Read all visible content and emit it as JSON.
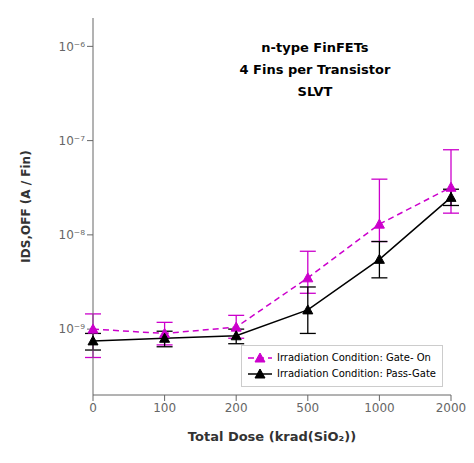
{
  "chart_data": {
    "type": "line",
    "annotations": [
      "n-type FinFETs",
      "4 Fins per Transistor",
      "SLVT"
    ],
    "x_label": "Total Dose (krad(SiO₂))",
    "y_label": "IDS,OFF (A / Fin)",
    "categories": [
      "0",
      "100",
      "200",
      "500",
      "1000",
      "2000"
    ],
    "series": [
      {
        "name": "Irradiation Condition: Gate- On",
        "color": "#CC00CC",
        "line_style": "dashed",
        "marker": "triangle",
        "values": [
          1e-09,
          9e-10,
          1.05e-09,
          3.5e-09,
          1.3e-08,
          3.2e-08
        ],
        "error_low": [
          5e-10,
          2.2e-10,
          2.5e-10,
          1.1e-09,
          4.5e-09,
          1.5e-08
        ],
        "error_high": [
          4.5e-10,
          2.8e-10,
          3.5e-10,
          3.2e-09,
          2.6e-08,
          4.8e-08
        ]
      },
      {
        "name": "Irradiation Condition: Pass-Gate",
        "color": "#000000",
        "line_style": "solid",
        "marker": "triangle",
        "values": [
          7.5e-10,
          8e-10,
          8.5e-10,
          1.6e-09,
          5.5e-09,
          2.5e-08
        ],
        "error_low": [
          1.5e-10,
          1.5e-10,
          1.5e-10,
          7e-10,
          2e-09,
          4.5e-09
        ],
        "error_high": [
          1.5e-10,
          1.5e-10,
          1.5e-10,
          1.2e-09,
          3e-09,
          5.5e-09
        ]
      }
    ],
    "log": "y",
    "ylim": [
      2e-10,
      2e-06
    ],
    "yticks": [
      {
        "value": 1e-09,
        "label": "10⁻⁹"
      },
      {
        "value": 1e-08,
        "label": "10⁻⁸"
      },
      {
        "value": 1e-07,
        "label": "10⁻⁷"
      },
      {
        "value": 1e-06,
        "label": "10⁻⁶"
      }
    ],
    "grid": false,
    "legend": "lower right"
  }
}
